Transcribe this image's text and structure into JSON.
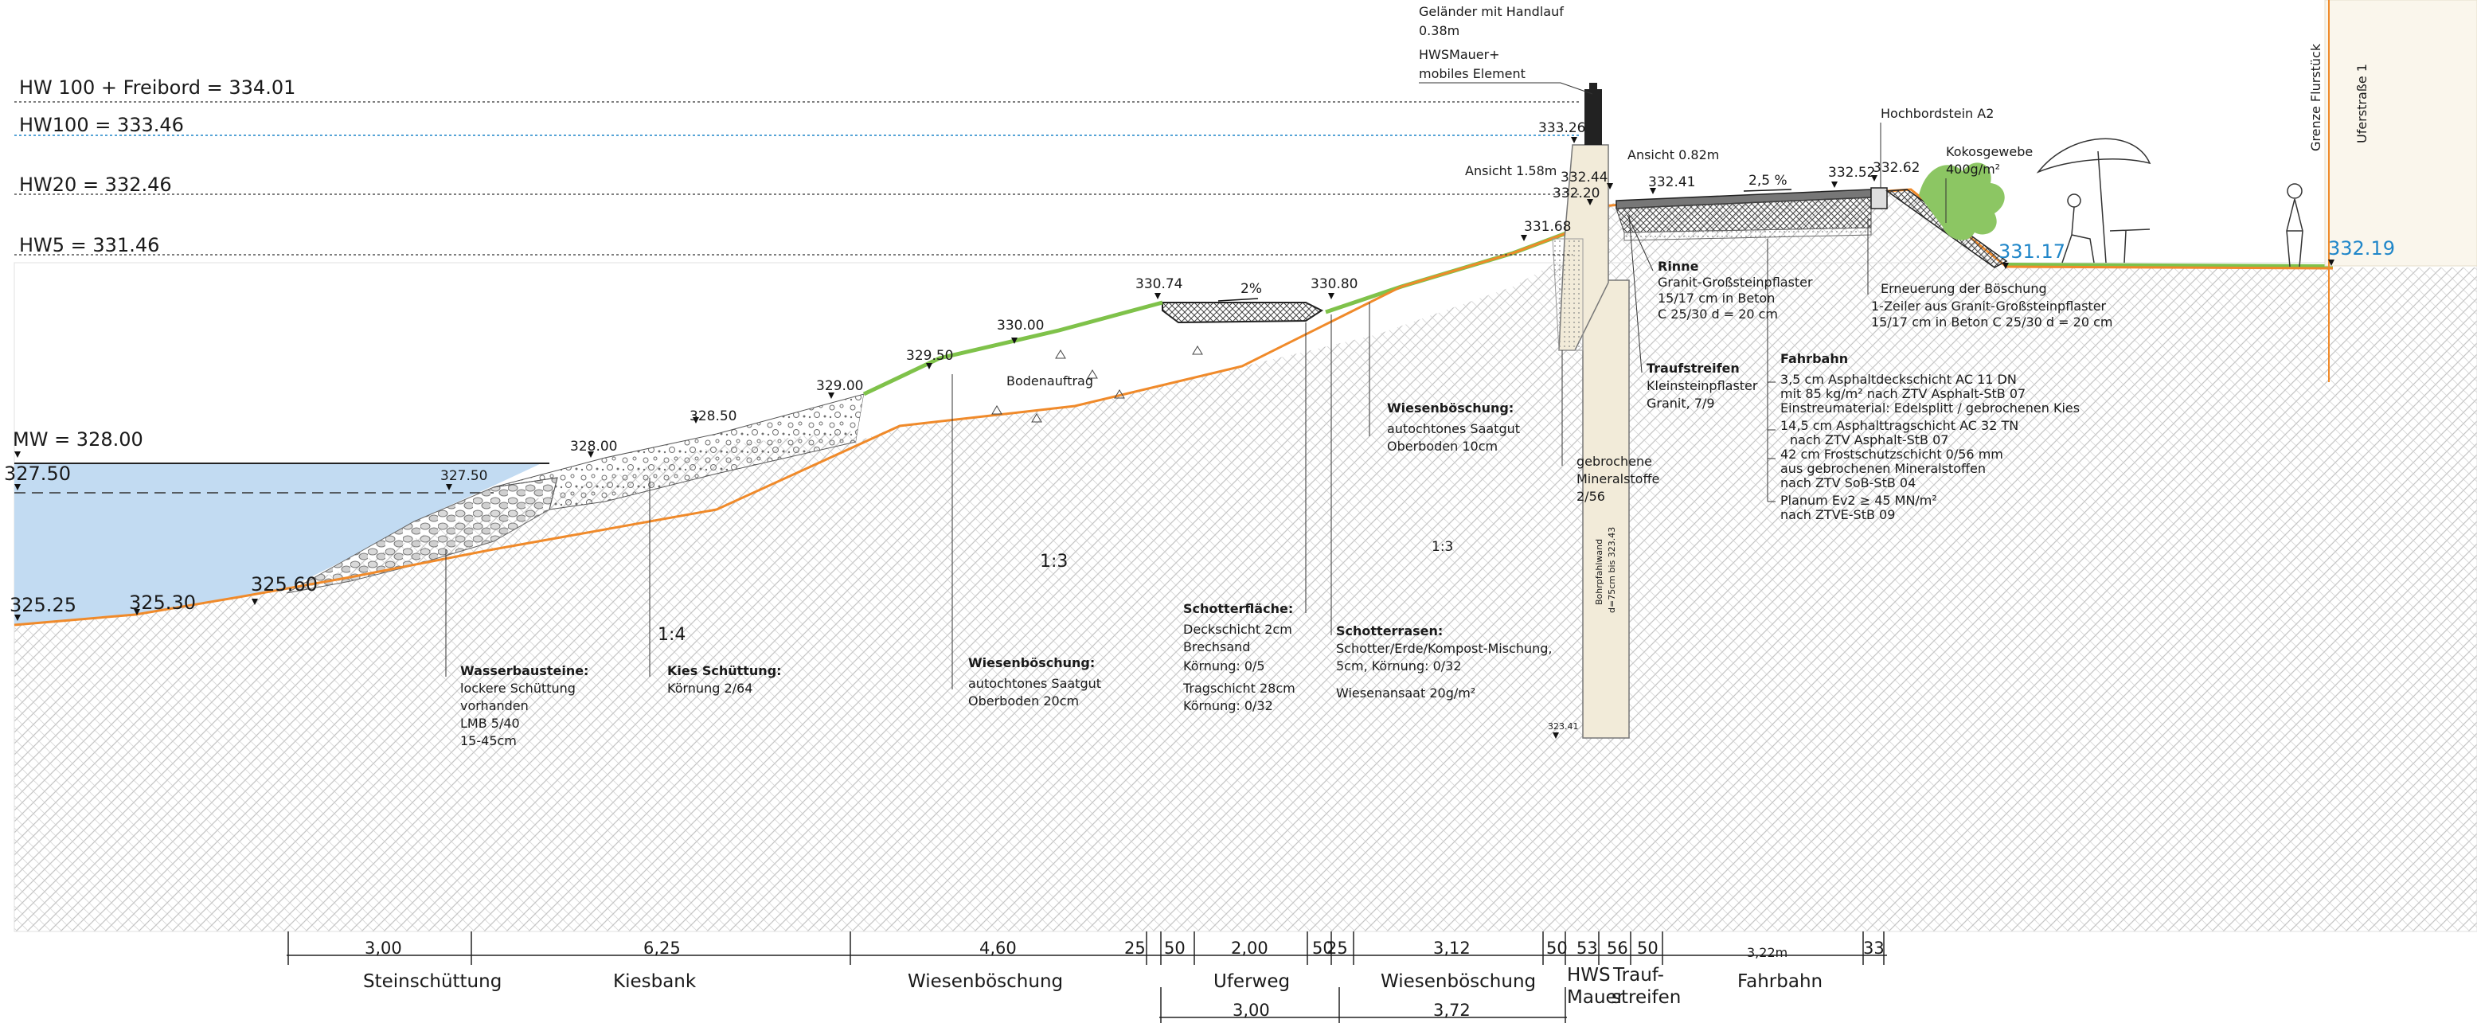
{
  "levels": {
    "hw100_freibord": "HW 100 + Freibord = 334.01",
    "hw100": "HW100 = 333.46",
    "hw20": "HW20 = 332.46",
    "hw5": "HW5 = 331.46",
    "mw": "MW = 328.00"
  },
  "elevations": {
    "e327_50_left": "327.50",
    "e327_50_mid": "327.50",
    "e325_25": "325.25",
    "e325_30": "325.30",
    "e325_60": "325.60",
    "e328_00": "328.00",
    "e328_50": "328.50",
    "e329_00": "329.00",
    "e329_50": "329.50",
    "e330_00": "330.00",
    "e330_74": "330.74",
    "e330_80": "330.80",
    "e331_68": "331.68",
    "e332_20": "332.20",
    "e333_26": "333.26",
    "e332_44": "332.44",
    "e332_41": "332.41",
    "e332_52": "332.52",
    "e332_62": "332.62",
    "e331_17": "331.17",
    "e332_19": "332.19",
    "e323_41": "323.41"
  },
  "slopes": {
    "s2pct": "2%",
    "s2_5pct": "2,5 %",
    "s1_3": "1:3",
    "s1_3b": "1:3",
    "s1_4": "1:4"
  },
  "notes": {
    "gelaender_1": "Geländer mit Handlauf",
    "gelaender_2": "0.38m",
    "hws_1": "HWSMauer+",
    "hws_2": "mobiles Element",
    "ansicht_158": "Ansicht 1.58m",
    "ansicht_082": "Ansicht 0.82m",
    "hochbord": "Hochbordstein A2",
    "kokos_1": "Kokosgewebe",
    "kokos_2": "400g/m²",
    "grenze": "Grenze Flurstück",
    "uferstrasse": "Uferstraße 1",
    "rinne_t": "Rinne",
    "rinne_1": "Granit-Großsteinpflaster",
    "rinne_2": "15/17 cm in Beton",
    "rinne_3": "C 25/30 d = 20 cm",
    "ern_1": "Erneuerung der Böschung",
    "ern_2": "1-Zeiler aus Granit-Großsteinpflaster",
    "ern_3": "15/17 cm in Beton C 25/30 d = 20 cm",
    "trauf_t": "Traufstreifen",
    "trauf_1": "Kleinsteinpflaster",
    "trauf_2": "Granit, 7/9",
    "fahrbahn_t": "Fahrbahn",
    "fb_1": "3,5 cm Asphaltdeckschicht AC 11 DN",
    "fb_2": "mit 85 kg/m² nach ZTV Asphalt-StB 07",
    "fb_3": "Einstreumaterial: Edelsplitt / gebrochenen Kies",
    "fb_4": "14,5 cm Asphalttragschicht AC 32 TN",
    "fb_5": "nach ZTV Asphalt-StB 07",
    "fb_6": "42 cm   Frostschutzschicht 0/56 mm",
    "fb_7": "aus gebrochenen Mineralstoffen",
    "fb_8": "nach ZTV SoB-StB 04",
    "fb_9": "Planum Ev2 ≥ 45 MN/m²",
    "fb_10": "nach ZTVE-StB 09",
    "wb_top_t": "Wiesenböschung:",
    "wb_top_1": "autochtones Saatgut",
    "wb_top_2": "Oberboden 10cm",
    "gebr_1": "gebrochene",
    "gebr_2": "Mineralstoffe",
    "gebr_3": "2/56",
    "bodenauftrag": "Bodenauftrag",
    "bohrpfahl_1": "Bohrpfahlwand",
    "bohrpfahl_2": "d=75cm bis 323.43",
    "schotterfl_t": "Schotterfläche:",
    "schotterfl_1": "Deckschicht 2cm",
    "schotterfl_2": "Brechsand",
    "schotterfl_3": "Körnung: 0/5",
    "schotterfl_4": "Tragschicht 28cm",
    "schotterfl_5": "Körnung: 0/32",
    "schotterr_t": "Schotterrasen:",
    "schotterr_1": "Schotter/Erde/Kompost-Mischung,",
    "schotterr_2": "5cm, Körnung: 0/32",
    "schotterr_3": "Wiesenansaat 20g/m²",
    "wb_bot_t": "Wiesenböschung:",
    "wb_bot_1": "autochtones Saatgut",
    "wb_bot_2": "Oberboden 20cm",
    "kies_t": "Kies Schüttung:",
    "kies_1": "Körnung 2/64",
    "wasser_t": "Wasserbausteine:",
    "wasser_1": "lockere Schüttung",
    "wasser_2": "vorhanden",
    "wasser_3": "LMB 5/40",
    "wasser_4": "15-45cm"
  },
  "dimensions": {
    "d1": "3,00",
    "d2": "6,25",
    "d3": "4,60",
    "d4": "25",
    "d5": "50",
    "d6": "2,00",
    "d7": "50",
    "d8": "25",
    "d9": "3,12",
    "d10": "50",
    "d11": "53",
    "d12": "56",
    "d13": "50",
    "d14": "3,22m",
    "d15": "33",
    "d16": "3,00",
    "d17": "3,72"
  },
  "segments": {
    "steinschuettung": "Steinschüttung",
    "kiesbank": "Kiesbank",
    "wiesenboeschung_1": "Wiesenböschung",
    "uferweg": "Uferweg",
    "wiesenboeschung_2": "Wiesenböschung",
    "hws_1": "HWS",
    "hws_2": "Mauer",
    "trauf_1": "Trauf-",
    "trauf_2": "streifen",
    "fahrbahn": "Fahrbahn"
  },
  "colors": {
    "water": "#c2dbf2",
    "ground_line": "#f08a2a",
    "grass": "#7fc24a",
    "hatch": "#bdbdbd",
    "wall": "#f2ebd9",
    "blue_text": "#1f86c9",
    "bush": "#8cc663"
  }
}
